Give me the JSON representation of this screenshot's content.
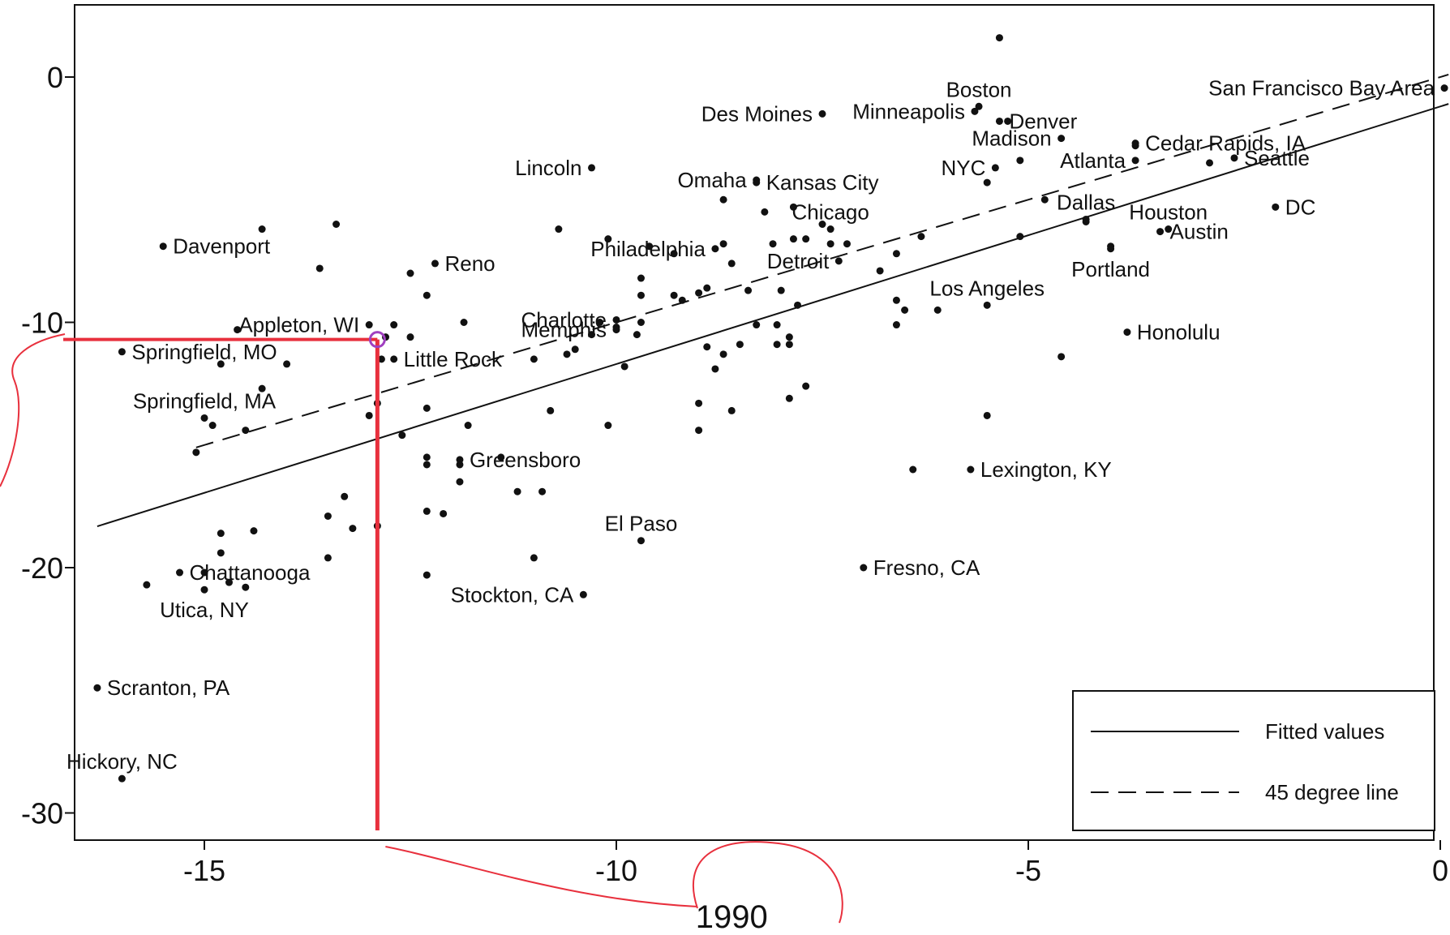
{
  "chart_data": {
    "type": "scatter",
    "title": "",
    "xlabel": "1990",
    "ylabel": "",
    "xlim": [
      -16.5,
      0.2
    ],
    "ylim": [
      -31,
      3
    ],
    "x_ticks": [
      -15,
      -10,
      -5,
      0
    ],
    "y_ticks": [
      0,
      -10,
      -20,
      -30
    ],
    "x_tick_labels": [
      "-15",
      "-10",
      "-5",
      "0"
    ],
    "y_tick_labels": [
      "0",
      "-10",
      "-20",
      "-30"
    ],
    "grid": false,
    "legend": {
      "position": "bottom-right",
      "entries": [
        {
          "label": "Fitted values",
          "style": "solid"
        },
        {
          "label": "45 degree line",
          "style": "dashed"
        }
      ]
    },
    "lines": {
      "fitted": {
        "name": "Fitted values",
        "slope": 1.05,
        "intercept": -1.2,
        "x_range": [
          -16.3,
          0.1
        ],
        "color": "#111111"
      },
      "degree45": {
        "name": "45 degree line",
        "slope": 1.0,
        "intercept": 0,
        "x_range": [
          -15.1,
          0.1
        ],
        "color": "#111111"
      }
    },
    "annotation": {
      "highlight_point": {
        "x": -12.9,
        "y": -10.7
      },
      "color": "#e8303d"
    },
    "labeled_points": [
      {
        "label": "San Francisco Bay Area",
        "x": 0.05,
        "y": -0.45,
        "side": "left"
      },
      {
        "label": "Boston",
        "x": -5.6,
        "y": -1.2,
        "side": "top"
      },
      {
        "label": "Minneapolis",
        "x": -5.65,
        "y": -1.4,
        "side": "left"
      },
      {
        "label": "Denver",
        "x": -5.35,
        "y": -1.8,
        "side": "right"
      },
      {
        "label": "Des Moines",
        "x": -7.5,
        "y": -1.5,
        "side": "left"
      },
      {
        "label": "Madison",
        "x": -4.6,
        "y": -2.5,
        "side": "left"
      },
      {
        "label": "Cedar Rapids, IA",
        "x": -3.7,
        "y": -2.7,
        "side": "right"
      },
      {
        "label": "Seattle",
        "x": -2.5,
        "y": -3.3,
        "side": "right"
      },
      {
        "label": "NYC",
        "x": -5.4,
        "y": -3.7,
        "side": "left"
      },
      {
        "label": "Atlanta",
        "x": -3.7,
        "y": -3.4,
        "side": "left"
      },
      {
        "label": "Lincoln",
        "x": -10.3,
        "y": -3.7,
        "side": "left"
      },
      {
        "label": "Omaha",
        "x": -8.3,
        "y": -4.2,
        "side": "left"
      },
      {
        "label": "Kansas City",
        "x": -8.3,
        "y": -4.3,
        "side": "right"
      },
      {
        "label": "Dallas",
        "x": -4.3,
        "y": -5.8,
        "side": "top"
      },
      {
        "label": "Houston",
        "x": -3.3,
        "y": -6.2,
        "side": "top"
      },
      {
        "label": "DC",
        "x": -2.0,
        "y": -5.3,
        "side": "right"
      },
      {
        "label": "Austin",
        "x": -3.4,
        "y": -6.3,
        "side": "right"
      },
      {
        "label": "Chicago",
        "x": -7.4,
        "y": -6.2,
        "side": "top"
      },
      {
        "label": "Philadelphia",
        "x": -8.8,
        "y": -7.0,
        "side": "left"
      },
      {
        "label": "Davenport",
        "x": -15.5,
        "y": -6.9,
        "side": "right"
      },
      {
        "label": "Detroit",
        "x": -7.3,
        "y": -7.5,
        "side": "left"
      },
      {
        "label": "Reno",
        "x": -12.2,
        "y": -7.6,
        "side": "right"
      },
      {
        "label": "Portland",
        "x": -4.0,
        "y": -7.0,
        "side": "bottom"
      },
      {
        "label": "Los Angeles",
        "x": -5.5,
        "y": -9.3,
        "side": "top"
      },
      {
        "label": "Charlotte",
        "x": -10.0,
        "y": -9.9,
        "side": "left"
      },
      {
        "label": "Appleton, WI",
        "x": -13.0,
        "y": -10.1,
        "side": "left"
      },
      {
        "label": "Memphis",
        "x": -10.0,
        "y": -10.3,
        "side": "left"
      },
      {
        "label": "Honolulu",
        "x": -3.8,
        "y": -10.4,
        "side": "right"
      },
      {
        "label": "Springfield, MO",
        "x": -16.0,
        "y": -11.2,
        "side": "right"
      },
      {
        "label": "Little Rock",
        "x": -12.7,
        "y": -11.5,
        "side": "right"
      },
      {
        "label": "Springfield, MA",
        "x": -15.0,
        "y": -13.9,
        "side": "top"
      },
      {
        "label": "Greensboro",
        "x": -11.9,
        "y": -15.6,
        "side": "right"
      },
      {
        "label": "Lexington, KY",
        "x": -5.7,
        "y": -16.0,
        "side": "right"
      },
      {
        "label": "El Paso",
        "x": -9.7,
        "y": -18.9,
        "side": "top"
      },
      {
        "label": "Fresno, CA",
        "x": -7.0,
        "y": -20.0,
        "side": "right"
      },
      {
        "label": "Chattanooga",
        "x": -15.3,
        "y": -20.2,
        "side": "right"
      },
      {
        "label": "Stockton, CA",
        "x": -10.4,
        "y": -21.1,
        "side": "left"
      },
      {
        "label": "Utica, NY",
        "x": -15.0,
        "y": -20.9,
        "side": "bottom"
      },
      {
        "label": "Scranton, PA",
        "x": -16.3,
        "y": -24.9,
        "side": "right"
      },
      {
        "label": "Hickory, NC",
        "x": -16.0,
        "y": -28.6,
        "side": "top"
      }
    ],
    "points": [
      {
        "x": -5.35,
        "y": 1.6
      },
      {
        "x": -5.25,
        "y": -1.8
      },
      {
        "x": -5.5,
        "y": -4.3
      },
      {
        "x": -5.1,
        "y": -3.4
      },
      {
        "x": -3.7,
        "y": -2.8
      },
      {
        "x": -2.8,
        "y": -3.5
      },
      {
        "x": -4.8,
        "y": -5.0
      },
      {
        "x": -4.3,
        "y": -5.9
      },
      {
        "x": -5.1,
        "y": -6.5
      },
      {
        "x": -4.0,
        "y": -6.9
      },
      {
        "x": -6.3,
        "y": -6.5
      },
      {
        "x": -6.6,
        "y": -7.2
      },
      {
        "x": -6.8,
        "y": -7.9
      },
      {
        "x": -6.6,
        "y": -9.1
      },
      {
        "x": -6.5,
        "y": -9.5
      },
      {
        "x": -6.6,
        "y": -10.1
      },
      {
        "x": -6.1,
        "y": -9.5
      },
      {
        "x": -4.6,
        "y": -11.4
      },
      {
        "x": -5.5,
        "y": -13.8
      },
      {
        "x": -6.4,
        "y": -16.0
      },
      {
        "x": -7.5,
        "y": -6.0
      },
      {
        "x": -7.7,
        "y": -6.6
      },
      {
        "x": -7.4,
        "y": -6.8
      },
      {
        "x": -7.2,
        "y": -6.8
      },
      {
        "x": -8.2,
        "y": -5.5
      },
      {
        "x": -7.85,
        "y": -5.3
      },
      {
        "x": -8.1,
        "y": -6.8
      },
      {
        "x": -7.85,
        "y": -6.6
      },
      {
        "x": -8.7,
        "y": -5.0
      },
      {
        "x": -8.7,
        "y": -6.8
      },
      {
        "x": -8.6,
        "y": -7.6
      },
      {
        "x": -9.3,
        "y": -7.2
      },
      {
        "x": -9.6,
        "y": -6.9
      },
      {
        "x": -10.1,
        "y": -6.6
      },
      {
        "x": -10.7,
        "y": -6.2
      },
      {
        "x": -9.7,
        "y": -8.2
      },
      {
        "x": -9.7,
        "y": -8.9
      },
      {
        "x": -9.3,
        "y": -8.9
      },
      {
        "x": -9.2,
        "y": -9.1
      },
      {
        "x": -9.0,
        "y": -8.8
      },
      {
        "x": -8.9,
        "y": -8.6
      },
      {
        "x": -8.4,
        "y": -8.7
      },
      {
        "x": -8.0,
        "y": -8.7
      },
      {
        "x": -7.8,
        "y": -9.3
      },
      {
        "x": -8.3,
        "y": -10.1
      },
      {
        "x": -8.05,
        "y": -10.1
      },
      {
        "x": -7.9,
        "y": -10.6
      },
      {
        "x": -8.05,
        "y": -10.9
      },
      {
        "x": -7.9,
        "y": -10.9
      },
      {
        "x": -8.5,
        "y": -10.9
      },
      {
        "x": -8.7,
        "y": -11.3
      },
      {
        "x": -8.8,
        "y": -11.9
      },
      {
        "x": -8.9,
        "y": -11.0
      },
      {
        "x": -9.7,
        "y": -10.0
      },
      {
        "x": -9.75,
        "y": -10.5
      },
      {
        "x": -10.0,
        "y": -10.2
      },
      {
        "x": -10.2,
        "y": -10.0
      },
      {
        "x": -10.3,
        "y": -10.5
      },
      {
        "x": -10.5,
        "y": -11.1
      },
      {
        "x": -10.6,
        "y": -11.3
      },
      {
        "x": -11.0,
        "y": -11.5
      },
      {
        "x": -9.9,
        "y": -11.8
      },
      {
        "x": -10.8,
        "y": -13.6
      },
      {
        "x": -10.1,
        "y": -14.2
      },
      {
        "x": -9.0,
        "y": -13.3
      },
      {
        "x": -9.0,
        "y": -14.4
      },
      {
        "x": -8.6,
        "y": -13.6
      },
      {
        "x": -7.9,
        "y": -13.1
      },
      {
        "x": -7.7,
        "y": -12.6
      },
      {
        "x": -11.85,
        "y": -10.0
      },
      {
        "x": -12.3,
        "y": -8.9
      },
      {
        "x": -12.5,
        "y": -8.0
      },
      {
        "x": -12.5,
        "y": -10.6
      },
      {
        "x": -12.7,
        "y": -10.1
      },
      {
        "x": -12.8,
        "y": -10.6
      },
      {
        "x": -12.85,
        "y": -11.5
      },
      {
        "x": -12.9,
        "y": -13.3
      },
      {
        "x": -13.0,
        "y": -13.8
      },
      {
        "x": -12.6,
        "y": -14.6
      },
      {
        "x": -12.3,
        "y": -13.5
      },
      {
        "x": -11.8,
        "y": -14.2
      },
      {
        "x": -12.3,
        "y": -15.5
      },
      {
        "x": -12.3,
        "y": -15.8
      },
      {
        "x": -11.9,
        "y": -15.8
      },
      {
        "x": -11.9,
        "y": -16.5
      },
      {
        "x": -11.4,
        "y": -15.5
      },
      {
        "x": -11.2,
        "y": -16.9
      },
      {
        "x": -10.9,
        "y": -16.9
      },
      {
        "x": -12.3,
        "y": -17.7
      },
      {
        "x": -12.1,
        "y": -17.8
      },
      {
        "x": -12.3,
        "y": -20.3
      },
      {
        "x": -11.0,
        "y": -19.6
      },
      {
        "x": -12.9,
        "y": -18.3
      },
      {
        "x": -13.2,
        "y": -18.4
      },
      {
        "x": -13.3,
        "y": -17.1
      },
      {
        "x": -13.5,
        "y": -17.9
      },
      {
        "x": -13.5,
        "y": -19.6
      },
      {
        "x": -13.4,
        "y": -6.0
      },
      {
        "x": -13.6,
        "y": -7.8
      },
      {
        "x": -14.3,
        "y": -6.2
      },
      {
        "x": -14.6,
        "y": -10.3
      },
      {
        "x": -14.8,
        "y": -11.7
      },
      {
        "x": -14.0,
        "y": -11.7
      },
      {
        "x": -14.3,
        "y": -12.7
      },
      {
        "x": -14.5,
        "y": -14.4
      },
      {
        "x": -14.9,
        "y": -14.2
      },
      {
        "x": -15.1,
        "y": -15.3
      },
      {
        "x": -14.8,
        "y": -18.6
      },
      {
        "x": -14.4,
        "y": -18.5
      },
      {
        "x": -14.8,
        "y": -19.4
      },
      {
        "x": -15.0,
        "y": -20.2
      },
      {
        "x": -14.7,
        "y": -20.6
      },
      {
        "x": -14.5,
        "y": -20.8
      },
      {
        "x": -15.7,
        "y": -20.7
      }
    ]
  }
}
